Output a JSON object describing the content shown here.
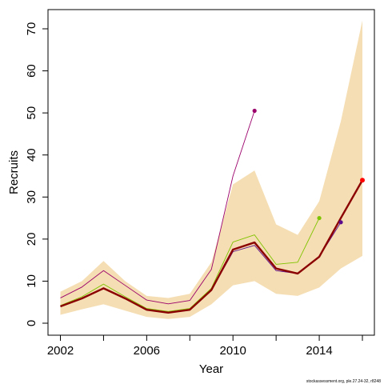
{
  "chart_data": {
    "type": "line",
    "xlabel": "Year",
    "ylabel": "Recruits",
    "xlim": [
      2002,
      2016
    ],
    "ylim": [
      0,
      70
    ],
    "x_ticks": [
      2002,
      2006,
      2010,
      2014
    ],
    "x_minor_ticks": [
      2002,
      2004,
      2006,
      2008,
      2010,
      2012,
      2014,
      2016
    ],
    "y_ticks": [
      0,
      10,
      20,
      30,
      40,
      50,
      60,
      70
    ],
    "footnote": "stockassessment.org, ple.27.24-32, r8248",
    "band": {
      "color": "#F5DEB3",
      "x": [
        2002,
        2003,
        2004,
        2005,
        2006,
        2007,
        2008,
        2009,
        2010,
        2011,
        2012,
        2013,
        2014,
        2015,
        2016
      ],
      "lower": [
        2.0,
        3.3,
        4.5,
        3.0,
        1.5,
        1.0,
        1.5,
        4.5,
        9.0,
        10.0,
        7.0,
        6.5,
        8.5,
        13.0,
        16.0
      ],
      "upper": [
        7.5,
        10.0,
        14.8,
        10.0,
        6.5,
        6.0,
        7.0,
        14.5,
        33.0,
        36.3,
        23.5,
        21.0,
        29.0,
        48.0,
        72.0
      ]
    },
    "series": [
      {
        "color": "#9B006B",
        "width": 0.9,
        "end_marker": true,
        "x": [
          2002,
          2003,
          2004,
          2005,
          2006,
          2007,
          2008,
          2009,
          2010,
          2011
        ],
        "values": [
          6.0,
          8.6,
          12.5,
          9.0,
          5.5,
          4.6,
          5.4,
          12.8,
          35.0,
          50.5
        ]
      },
      {
        "color": "#7FC400",
        "width": 0.9,
        "end_marker": true,
        "x": [
          2002,
          2003,
          2004,
          2005,
          2006,
          2007,
          2008,
          2009,
          2010,
          2011,
          2012,
          2013,
          2014
        ],
        "values": [
          4.2,
          6.3,
          9.3,
          6.3,
          3.5,
          2.8,
          3.5,
          8.3,
          19.3,
          21.0,
          14.0,
          14.5,
          25.0
        ]
      },
      {
        "color": "#5A0A8A",
        "width": 0.9,
        "end_marker": true,
        "x": [
          2002,
          2003,
          2004,
          2005,
          2006,
          2007,
          2008,
          2009,
          2010,
          2011,
          2012,
          2013,
          2014,
          2015
        ],
        "values": [
          4.0,
          5.8,
          8.2,
          5.8,
          3.2,
          2.5,
          3.2,
          7.8,
          17.0,
          18.5,
          12.5,
          11.8,
          15.8,
          24.0
        ]
      },
      {
        "color": "#8B0000",
        "width": 2.4,
        "end_marker": true,
        "end_marker_color": "#FF0000",
        "x": [
          2002,
          2003,
          2004,
          2005,
          2006,
          2007,
          2008,
          2009,
          2010,
          2011,
          2012,
          2013,
          2014,
          2015,
          2016
        ],
        "values": [
          4.0,
          5.9,
          8.3,
          5.9,
          3.2,
          2.5,
          3.2,
          7.9,
          17.5,
          19.2,
          13.0,
          11.8,
          15.8,
          25.0,
          34.0
        ]
      }
    ]
  }
}
